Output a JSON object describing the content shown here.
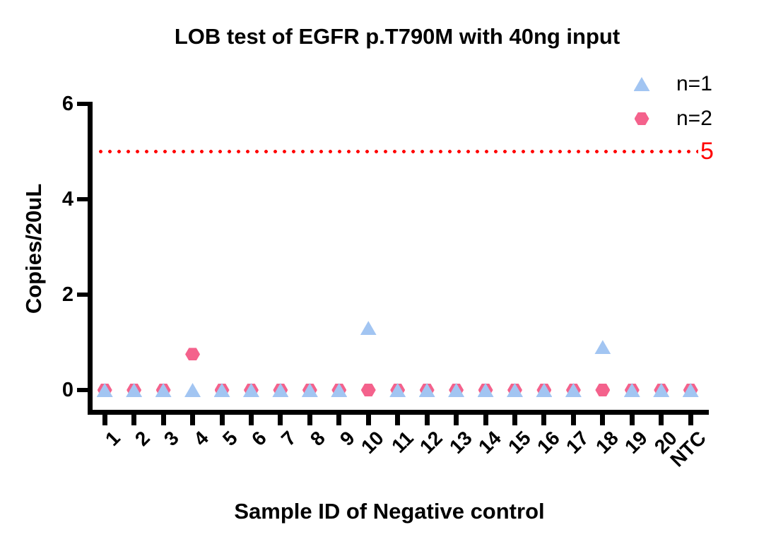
{
  "chart_data": {
    "type": "scatter",
    "title": "LOB test of EGFR p.T790M with 40ng input",
    "xlabel": "Sample ID of Negative control",
    "ylabel": "Copies/20uL",
    "categories": [
      "1",
      "2",
      "3",
      "4",
      "5",
      "6",
      "7",
      "8",
      "9",
      "10",
      "11",
      "12",
      "13",
      "14",
      "15",
      "16",
      "17",
      "18",
      "19",
      "20",
      "NTC"
    ],
    "series": [
      {
        "name": "n=1",
        "marker": "triangle",
        "color": "#A2C5F2",
        "values": [
          0,
          0,
          0,
          0,
          0,
          0,
          0,
          0,
          0,
          1.3,
          0,
          0,
          0,
          0,
          0,
          0,
          0,
          0.9,
          0,
          0,
          0
        ]
      },
      {
        "name": "n=2",
        "marker": "hexagon",
        "color": "#F4628C",
        "values": [
          0,
          0,
          0,
          0.75,
          0,
          0,
          0,
          0,
          0,
          0,
          0,
          0,
          0,
          0,
          0,
          0,
          0,
          0,
          0,
          0,
          0
        ]
      }
    ],
    "threshold": {
      "value": 5,
      "label": "5",
      "color": "#FF0000",
      "style": "dotted"
    },
    "ylim": [
      0,
      6
    ],
    "yticks": [
      0,
      2,
      4,
      6
    ],
    "axis_color": "#000000",
    "legend_position": "top-right",
    "grid": false
  }
}
